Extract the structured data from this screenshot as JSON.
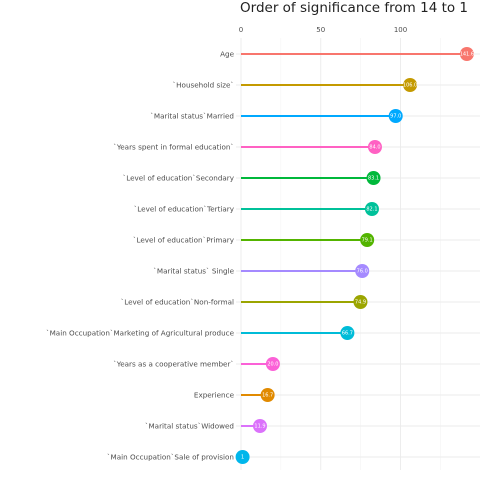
{
  "chart_data": {
    "type": "lollipop",
    "title": "Order of significance from 14 to 1",
    "xlabel": "",
    "ylabel": "",
    "xlim": [
      0,
      146
    ],
    "x_ticks": [
      0,
      50,
      100
    ],
    "grid": true,
    "legend": "none",
    "categories": [
      "Age",
      "`Household size`",
      "`Marital status`Married",
      "`Years spent in formal education`",
      "`Level  of education`Secondary",
      "`Level  of education`Tertiary",
      "`Level  of education`Primary",
      "`Marital status` Single",
      "`Level  of education`Non-formal",
      "`Main Occupation`Marketing of Agricultural produce",
      "`Years as a cooperative member`",
      "Experience",
      "`Marital status`Widowed",
      "`Main Occupation`Sale of provision"
    ],
    "values": [
      141.6,
      106.0,
      97.0,
      84.0,
      83.1,
      82.1,
      79.1,
      76.0,
      74.9,
      66.7,
      20.0,
      16.7,
      11.9,
      1.0
    ],
    "value_labels": [
      "141.6",
      "106.0",
      "97.0",
      "84.0",
      "83.1",
      "82.1",
      "79.1",
      "76.0",
      "74.9",
      "66.7",
      "20.0",
      "16.7",
      "11.9",
      "1"
    ],
    "colors": [
      "#F8766D",
      "#C49A00",
      "#00A9FF",
      "#FF61C3",
      "#00B83B",
      "#00C19A",
      "#53B400",
      "#A58AFF",
      "#9BA500",
      "#00BCD8",
      "#FB61D7",
      "#E18A00",
      "#DB72FB",
      "#00B6EB"
    ]
  }
}
